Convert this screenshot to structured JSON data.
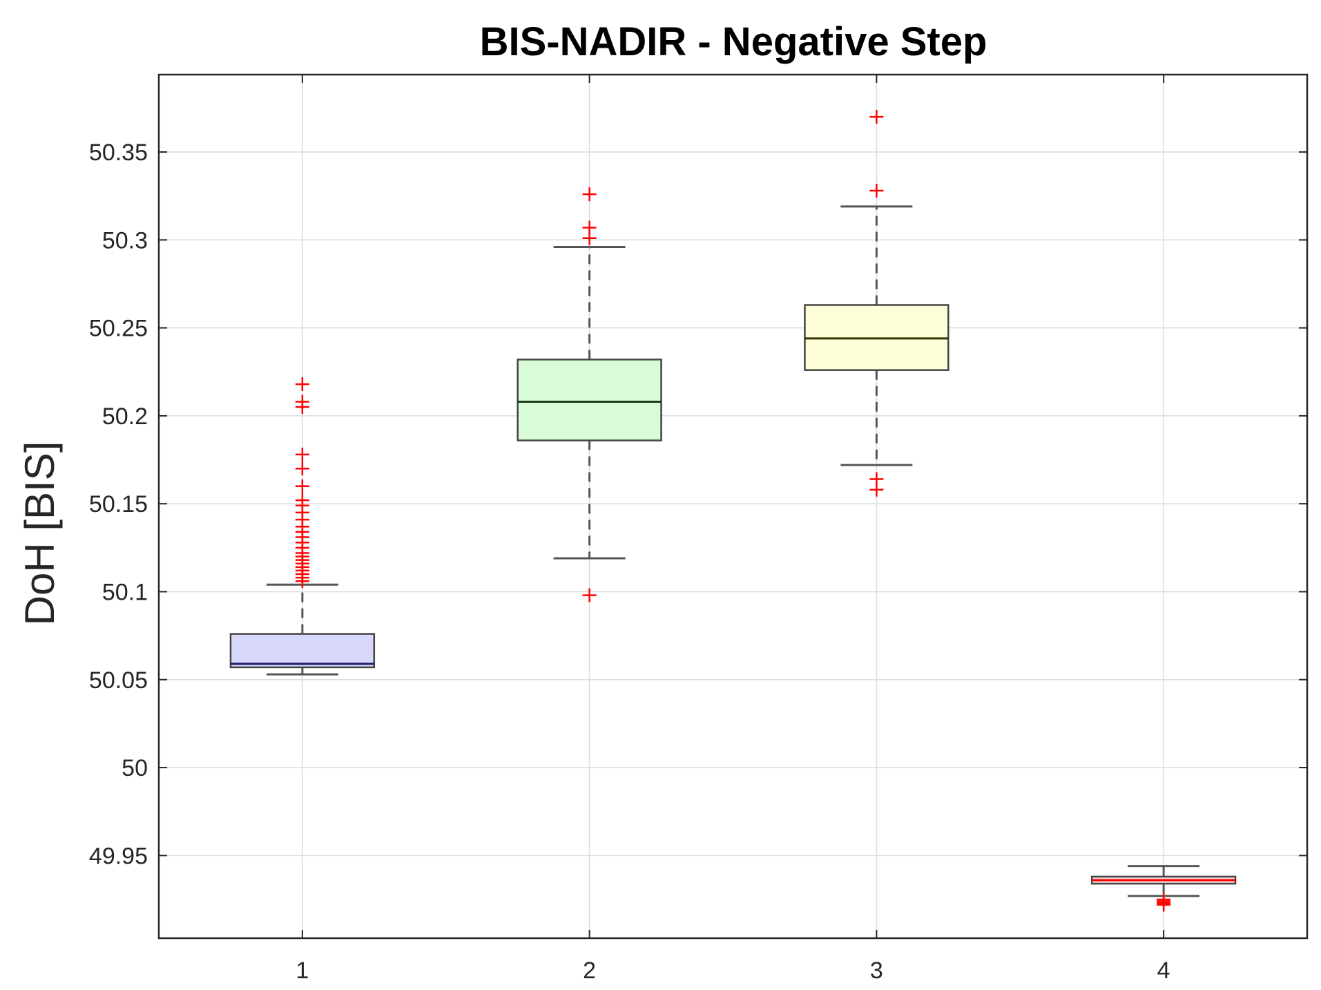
{
  "chart_data": {
    "type": "boxplot",
    "title": "BIS-NADIR - Negative Step",
    "xlabel": "",
    "ylabel": "DoH [BIS]",
    "categories": [
      "1",
      "2",
      "3",
      "4"
    ],
    "ylim": [
      49.903,
      50.394
    ],
    "yticks": [
      49.95,
      50,
      50.05,
      50.1,
      50.15,
      50.2,
      50.25,
      50.3,
      50.35
    ],
    "ytick_labels": [
      "49.95",
      "50",
      "50.05",
      "50.1",
      "50.15",
      "50.2",
      "50.25",
      "50.3",
      "50.35"
    ],
    "grid": true,
    "colors": {
      "outlier": "#ff0000",
      "whisker": "#555555",
      "grid": "#dcdcdc",
      "axis": "#262626"
    },
    "boxes": [
      {
        "category": "1",
        "q1": 50.057,
        "median": 50.059,
        "q3": 50.076,
        "whisker_low": 50.053,
        "whisker_high": 50.104,
        "fill": "#d8d8fb",
        "median_color": "#1a1a66",
        "outliers": [
          50.106,
          50.108,
          50.11,
          50.112,
          50.114,
          50.116,
          50.118,
          50.12,
          50.122,
          50.125,
          50.128,
          50.131,
          50.134,
          50.137,
          50.141,
          50.145,
          50.149,
          50.152,
          50.16,
          50.17,
          50.178,
          50.205,
          50.208,
          50.218
        ]
      },
      {
        "category": "2",
        "q1": 50.186,
        "median": 50.208,
        "q3": 50.232,
        "whisker_low": 50.119,
        "whisker_high": 50.296,
        "fill": "#d8fbd8",
        "median_color": "#1a3a1a",
        "outliers": [
          50.098,
          50.301,
          50.307,
          50.326
        ]
      },
      {
        "category": "3",
        "q1": 50.226,
        "median": 50.244,
        "q3": 50.263,
        "whisker_low": 50.172,
        "whisker_high": 50.319,
        "fill": "#fdfdd8",
        "median_color": "#333300",
        "outliers": [
          50.158,
          50.164,
          50.328,
          50.37
        ]
      },
      {
        "category": "4",
        "q1": 49.934,
        "median": 49.936,
        "q3": 49.938,
        "whisker_low": 49.927,
        "whisker_high": 49.944,
        "fill": "#fbd8d8",
        "median_color": "#ff0000",
        "outliers": [
          49.922,
          49.923,
          49.924,
          49.925
        ]
      }
    ]
  }
}
